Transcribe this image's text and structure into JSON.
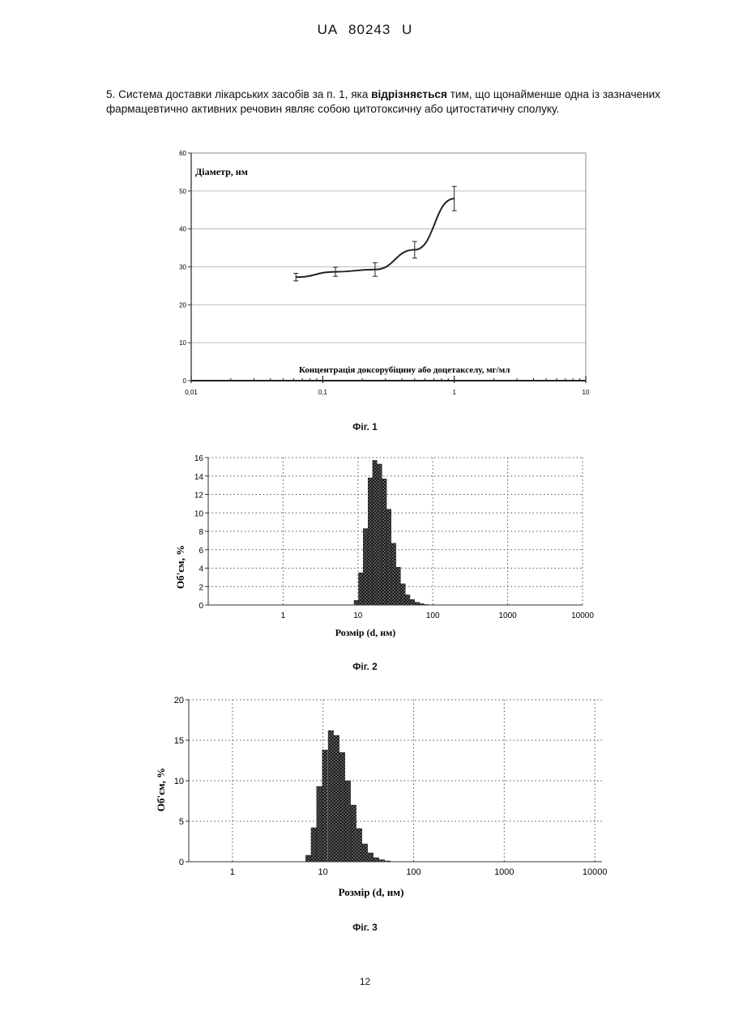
{
  "header": {
    "doc_id": "UA   80243   U"
  },
  "claim": {
    "pre": "5. Система доставки лікарських засобів за п. 1, яка ",
    "bold": "відрізняється",
    "post": " тим, що щонайменше одна із зазначених фармацевтично активних речовин являє собою цитотоксичну або цитостатичну сполуку."
  },
  "figures": {
    "fig1_caption": "Фіг. 1",
    "fig2_caption": "Фіг. 2",
    "fig3_caption": "Фіг. 3"
  },
  "page_number": "12",
  "chart_data": [
    {
      "type": "line",
      "xscale": "log",
      "xlim": [
        0.01,
        10
      ],
      "ylim": [
        0,
        60
      ],
      "ylabel": "Діаметр, нм",
      "xlabel": "Концентрація доксорубіцину або доцетакселу, мг/мл",
      "x_ticklabels": [
        "0,01",
        "0,1",
        "1",
        "10"
      ],
      "y_ticklabels": [
        "0",
        "10",
        "20",
        "30",
        "40",
        "50",
        "60"
      ],
      "grid": "horizontal",
      "points": [
        {
          "x": 0.0625,
          "y": 27.3,
          "err": 1.0
        },
        {
          "x": 0.125,
          "y": 28.7,
          "err": 1.2
        },
        {
          "x": 0.25,
          "y": 29.3,
          "err": 1.8
        },
        {
          "x": 0.5,
          "y": 34.5,
          "err": 2.2
        },
        {
          "x": 1,
          "y": 48,
          "err": 3.2
        }
      ]
    },
    {
      "type": "bar",
      "xscale": "log",
      "xlim": [
        0.1,
        10000
      ],
      "ylim": [
        0,
        16
      ],
      "ylabel": "Об'єм, %",
      "xlabel": "Розмір (d, нм)",
      "x_ticklabels": [
        "1",
        "10",
        "100",
        "1000",
        "10000"
      ],
      "y_ticklabels": [
        "0",
        "2",
        "4",
        "6",
        "8",
        "10",
        "12",
        "14",
        "16"
      ],
      "grid": "dotted",
      "bins": [
        {
          "x": 9.5,
          "y": 0.5
        },
        {
          "x": 10.9,
          "y": 3.5
        },
        {
          "x": 12.6,
          "y": 8.3
        },
        {
          "x": 14.6,
          "y": 13.8
        },
        {
          "x": 16.8,
          "y": 15.7
        },
        {
          "x": 19.5,
          "y": 15.3
        },
        {
          "x": 22.5,
          "y": 13.7
        },
        {
          "x": 25.9,
          "y": 10.4
        },
        {
          "x": 30,
          "y": 6.7
        },
        {
          "x": 34.6,
          "y": 4.1
        },
        {
          "x": 40,
          "y": 2.3
        },
        {
          "x": 46.2,
          "y": 1.1
        },
        {
          "x": 53.4,
          "y": 0.6
        },
        {
          "x": 61.7,
          "y": 0.3
        },
        {
          "x": 71.2,
          "y": 0.15
        },
        {
          "x": 82.3,
          "y": 0.05
        }
      ]
    },
    {
      "type": "bar",
      "xscale": "log",
      "xlim": [
        0.33,
        12000
      ],
      "ylim": [
        0,
        20
      ],
      "ylabel": "Об'єм, %",
      "xlabel": "Розмір (d, нм)",
      "x_ticklabels": [
        "1",
        "10",
        "100",
        "1000",
        "10000"
      ],
      "y_ticklabels": [
        "0",
        "5",
        "10",
        "15",
        "20"
      ],
      "grid": "dotted",
      "bins": [
        {
          "x": 6.9,
          "y": 0.8
        },
        {
          "x": 7.9,
          "y": 4.2
        },
        {
          "x": 9.1,
          "y": 9.3
        },
        {
          "x": 10.5,
          "y": 13.8
        },
        {
          "x": 12.2,
          "y": 16.2
        },
        {
          "x": 14.1,
          "y": 15.6
        },
        {
          "x": 16.3,
          "y": 13.5
        },
        {
          "x": 18.8,
          "y": 10.0
        },
        {
          "x": 21.7,
          "y": 7.0
        },
        {
          "x": 25.1,
          "y": 4.1
        },
        {
          "x": 29,
          "y": 2.2
        },
        {
          "x": 33.5,
          "y": 1.1
        },
        {
          "x": 38.8,
          "y": 0.5
        },
        {
          "x": 44.8,
          "y": 0.25
        },
        {
          "x": 51.8,
          "y": 0.1
        }
      ]
    }
  ]
}
